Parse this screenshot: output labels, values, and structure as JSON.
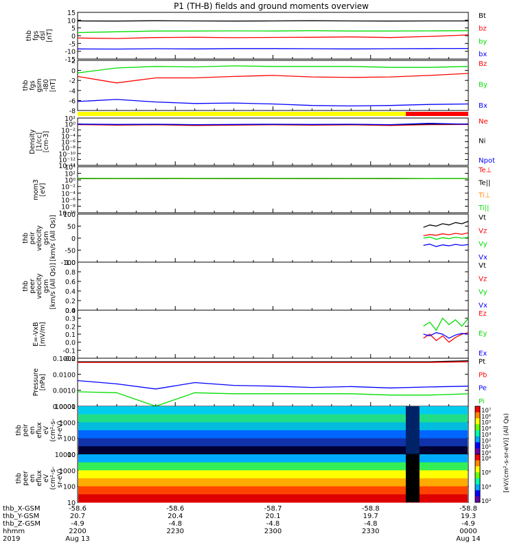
{
  "title": "P1 (TH-B) fields and ground moments overview",
  "colors": {
    "black": "#000000",
    "red": "#ff0000",
    "green": "#00dd00",
    "blue": "#0000ff",
    "yellow": "#ffff00"
  },
  "chart_data": [
    {
      "id": "fgs-dsl",
      "type": "line",
      "ylabel": [
        "thb",
        "fgs",
        "dsl",
        "[nT]"
      ],
      "ylim": [
        -15,
        15
      ],
      "yticks": [
        "15",
        "10",
        "5",
        "0",
        "-5",
        "-10",
        "-15"
      ],
      "series": [
        {
          "name": "Bt",
          "color": "#000000",
          "values": [
            9.5,
            9.4,
            9.6,
            9.5,
            9.4,
            9.5,
            9.6,
            9.5,
            9.4,
            9.5,
            9.5
          ]
        },
        {
          "name": "bz",
          "color": "#ff0000",
          "values": [
            -1.5,
            -1.8,
            -1.2,
            -1.0,
            -1.3,
            -1.1,
            -1.0,
            -0.8,
            -1.2,
            -0.5,
            0.5
          ]
        },
        {
          "name": "by",
          "color": "#00dd00",
          "values": [
            2.0,
            2.5,
            3.0,
            3.0,
            3.1,
            3.0,
            3.2,
            3.0,
            3.0,
            3.1,
            3.2
          ]
        },
        {
          "name": "bx",
          "color": "#0000ff",
          "values": [
            -8.5,
            -8.6,
            -8.4,
            -8.5,
            -8.3,
            -8.3,
            -8.4,
            -8.5,
            -8.4,
            -8.3,
            -8.2
          ]
        }
      ]
    },
    {
      "id": "fgs-gsm",
      "type": "line",
      "ylabel": [
        "thb",
        "fgs",
        "gsm",
        "-I80",
        "[nT]"
      ],
      "ylim": [
        -8,
        2
      ],
      "yticks": [
        "2",
        "0",
        "-2",
        "-4",
        "-6",
        "-8"
      ],
      "series": [
        {
          "name": "Bz",
          "color": "#ff0000",
          "values": [
            -1.2,
            -2.5,
            -1.5,
            -1.5,
            -1.2,
            -1.0,
            -1.3,
            -1.4,
            -1.3,
            -1.0,
            -0.6
          ]
        },
        {
          "name": "By",
          "color": "#00dd00",
          "values": [
            -0.5,
            0.5,
            0.8,
            0.7,
            0.9,
            0.8,
            0.8,
            0.8,
            0.6,
            0.6,
            0.8
          ]
        },
        {
          "name": "Bx",
          "color": "#0000ff",
          "values": [
            -6.2,
            -5.8,
            -6.3,
            -6.6,
            -6.5,
            -6.7,
            -7.0,
            -7.1,
            -7.0,
            -6.8,
            -6.7
          ]
        }
      ]
    },
    {
      "id": "density",
      "type": "line",
      "ylabel": [
        "Density",
        "[1/cc]",
        "[cm-3]"
      ],
      "ylim_log": [
        -14,
        2
      ],
      "yticks": [
        "10²",
        "10⁰",
        "10⁻²",
        "10⁻⁴",
        "10⁻⁶",
        "10⁻⁸",
        "10⁻¹⁰",
        "10⁻¹²",
        "10⁻¹⁴"
      ],
      "series": [
        {
          "name": "Ne",
          "color": "#ff0000",
          "values": [
            0.6,
            0.4,
            0.5,
            0.3,
            0.4,
            0.5,
            0.4,
            0.5,
            0.3,
            0.6,
            0.7
          ]
        },
        {
          "name": "Ni",
          "color": "#000000",
          "values": [
            0.8,
            0.6,
            0.7,
            0.5,
            0.6,
            0.7,
            0.6,
            0.7,
            0.5,
            0.9,
            0.9
          ]
        },
        {
          "name": "Npot",
          "color": "#0000ff",
          "values": [
            0.9,
            0.7,
            0.8,
            0.6,
            0.7,
            0.8,
            0.7,
            0.8,
            0.6,
            1.6,
            0.8
          ]
        }
      ]
    },
    {
      "id": "temperature",
      "type": "line",
      "ylabel": [
        "mom3",
        "[eV]"
      ],
      "ylim_log": [
        -10,
        4
      ],
      "yticks": [
        "10⁴",
        "10²",
        "10⁰",
        "10⁻²",
        "10⁻⁴",
        "10⁻⁶",
        "10⁻⁸",
        "10⁻¹⁰"
      ],
      "series": [
        {
          "name": "Te⊥",
          "color": "#ff0000",
          "values": [
            2.5,
            2.4,
            2.5,
            2.4,
            2.5,
            2.4,
            2.5,
            2.4,
            2.5,
            2.3,
            2.4
          ]
        },
        {
          "name": "Te||",
          "color": "#000000",
          "values": [
            2.6,
            2.5,
            2.6,
            2.5,
            2.6,
            2.5,
            2.6,
            2.5,
            2.6,
            2.4,
            2.5
          ]
        },
        {
          "name": "Ti⊥",
          "color": "#ff8800",
          "values": [
            2.8,
            2.7,
            2.8,
            2.7,
            2.8,
            2.7,
            2.8,
            2.7,
            2.8,
            2.5,
            2.6
          ]
        },
        {
          "name": "Ti||",
          "color": "#00dd00",
          "values": [
            3.0,
            2.9,
            3.0,
            2.9,
            3.0,
            2.9,
            3.0,
            2.9,
            3.0,
            2.7,
            2.8
          ]
        }
      ]
    },
    {
      "id": "peir-velocity",
      "type": "line",
      "ylabel": [
        "thb",
        "peir",
        "velocity",
        "gsm",
        "[km/s (All Qs)]"
      ],
      "ylim": [
        -100,
        100
      ],
      "yticks": [
        "100",
        "50",
        "0",
        "-50",
        "-100"
      ],
      "start_fraction": 0.885,
      "series": [
        {
          "name": "Vt",
          "color": "#000000",
          "values": [
            45,
            55,
            50,
            60,
            55,
            65,
            60,
            70
          ]
        },
        {
          "name": "Vz",
          "color": "#ff0000",
          "values": [
            10,
            15,
            12,
            18,
            14,
            20,
            16,
            22
          ]
        },
        {
          "name": "Vy",
          "color": "#00dd00",
          "values": [
            0,
            5,
            -5,
            2,
            -2,
            4,
            0,
            3
          ]
        },
        {
          "name": "Vx",
          "color": "#0000ff",
          "values": [
            -30,
            -25,
            -35,
            -28,
            -32,
            -26,
            -30,
            -27
          ]
        }
      ]
    },
    {
      "id": "peer-velocity",
      "type": "line",
      "ylabel": [
        "thb",
        "peer",
        "velocity",
        "gsm",
        "[km/s (All Qs)]"
      ],
      "ylim": [
        0,
        1
      ],
      "yticks": [
        "1.0",
        "0.8",
        "0.6",
        "0.4",
        "0.2",
        "0.0"
      ],
      "series": [
        {
          "name": "Vt",
          "color": "#000000",
          "values": []
        },
        {
          "name": "Vz",
          "color": "#ff0000",
          "values": []
        },
        {
          "name": "Vy",
          "color": "#00dd00",
          "values": []
        },
        {
          "name": "Vx",
          "color": "#0000ff",
          "values": []
        }
      ]
    },
    {
      "id": "efield",
      "type": "line",
      "ylabel": [
        "E=-VxB",
        "[mV/m]"
      ],
      "ylim": [
        -0.2,
        0.4
      ],
      "yticks": [
        "0.4",
        "0.3",
        "0.2",
        "0.1",
        "0.0",
        "-0.1",
        "-0.2"
      ],
      "start_fraction": 0.885,
      "series": [
        {
          "name": "Ez",
          "color": "#ff0000",
          "values": [
            0.05,
            0.1,
            0.02,
            0.08,
            0.0,
            0.06,
            0.1,
            0.12
          ]
        },
        {
          "name": "Ey",
          "color": "#00dd00",
          "values": [
            0.2,
            0.25,
            0.15,
            0.3,
            0.22,
            0.28,
            0.2,
            0.3
          ]
        },
        {
          "name": "Ex",
          "color": "#0000ff",
          "values": [
            0.1,
            0.08,
            0.12,
            0.1,
            0.05,
            0.09,
            0.11,
            0.1
          ]
        }
      ]
    },
    {
      "id": "pressure",
      "type": "line",
      "ylabel": [
        "Pressure",
        "[nPa]"
      ],
      "ylim_log": [
        -4,
        -1
      ],
      "yticks": [
        "0.1000",
        "0.0100",
        "0.0010",
        "0.0001"
      ],
      "series": [
        {
          "name": "Pt",
          "color": "#000000",
          "values": [
            0.06,
            0.06,
            0.06,
            0.06,
            0.06,
            0.06,
            0.06,
            0.06,
            0.06,
            0.06,
            0.07
          ]
        },
        {
          "name": "Pb",
          "color": "#ff0000",
          "values": [
            0.055,
            0.055,
            0.055,
            0.055,
            0.055,
            0.055,
            0.055,
            0.055,
            0.055,
            0.055,
            0.06
          ]
        },
        {
          "name": "Pe",
          "color": "#0000ff",
          "values": [
            0.004,
            0.0025,
            0.0012,
            0.003,
            0.002,
            0.0018,
            0.0015,
            0.0017,
            0.0014,
            0.0016,
            0.0018
          ]
        },
        {
          "name": "Pi",
          "color": "#00dd00",
          "values": [
            0.0008,
            0.0007,
            0.0001,
            0.0007,
            0.0006,
            0.0006,
            0.0006,
            0.0006,
            0.0005,
            0.0005,
            0.0006
          ]
        }
      ]
    },
    {
      "id": "peir-spec",
      "type": "heatmap",
      "ylabel": [
        "thb",
        "peir",
        "en",
        "eflux",
        "eV",
        "(cm²-s-",
        "sr-eV)"
      ],
      "yticks": [
        "10000",
        "1000",
        "100",
        "10"
      ],
      "colorbar_ticks": [
        "10⁷",
        "10⁶",
        "10⁵",
        "10⁴",
        "10³",
        "10²",
        "10¹",
        "10⁰"
      ],
      "colorbar_label": "[eV/(cm²-s-sr-eV)] (All Qs)"
    },
    {
      "id": "peer-spec",
      "type": "heatmap",
      "ylabel": [
        "thb",
        "peer",
        "en",
        "eflux",
        "eV",
        "(cm²-s-",
        "sr-eV)"
      ],
      "yticks": [
        "10000",
        "1000",
        "100",
        "10"
      ],
      "colorbar_ticks": [
        "10⁸",
        "10⁶",
        "10⁴",
        "10²"
      ],
      "colorbar_label": "[eV/(cm²-s-sr-eV)] (All Qs)"
    }
  ],
  "time_axis": {
    "row_labels": [
      "thb_X-GSM",
      "thb_Y-GSM",
      "thb_Z-GSM",
      "hhmm",
      "2019"
    ],
    "ticks": [
      {
        "frac": 0.0,
        "vals": [
          "-58.6",
          "20.7",
          "-4.9",
          "2200",
          "Aug 13"
        ]
      },
      {
        "frac": 0.25,
        "vals": [
          "-58.6",
          "20.4",
          "-4.8",
          "2230",
          ""
        ]
      },
      {
        "frac": 0.5,
        "vals": [
          "-58.7",
          "20.1",
          "-4.8",
          "2300",
          ""
        ]
      },
      {
        "frac": 0.75,
        "vals": [
          "-58.8",
          "19.7",
          "-4.8",
          "2330",
          ""
        ]
      },
      {
        "frac": 1.0,
        "vals": [
          "-58.8",
          "19.3",
          "-4.9",
          "0000",
          "Aug 14"
        ]
      }
    ]
  },
  "mode_bar": {
    "yellow_until_fraction": 0.84
  }
}
